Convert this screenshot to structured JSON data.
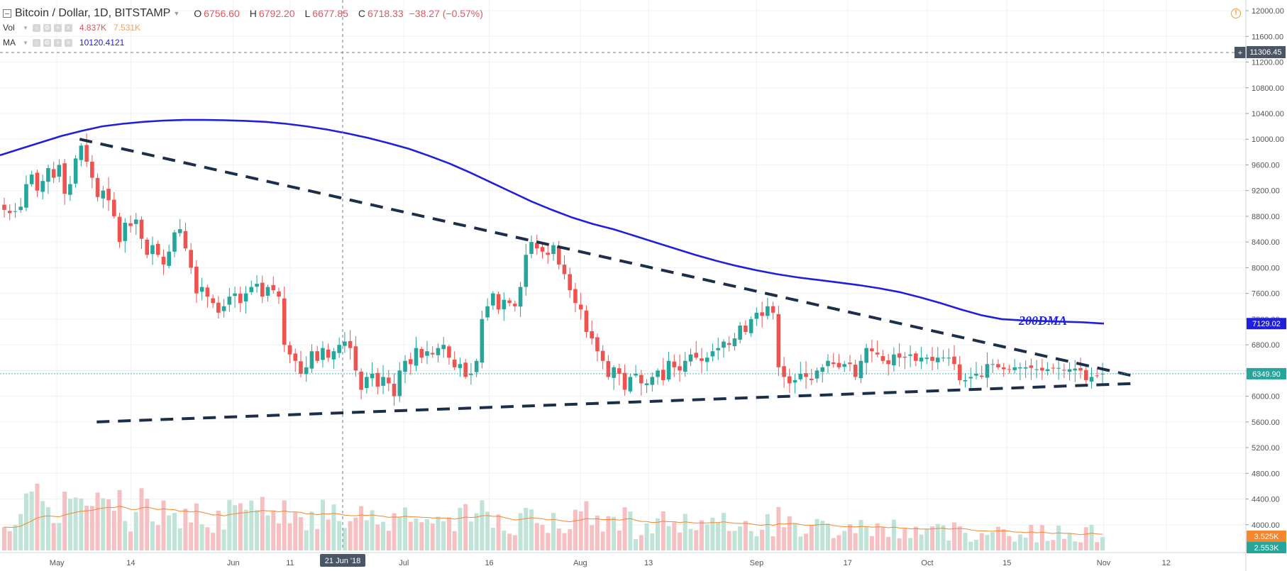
{
  "header": {
    "symbol_title": "Bitcoin / Dollar, 1D, BITSTAMP",
    "ohlc": [
      {
        "label": "O",
        "value": "6756.60"
      },
      {
        "label": "H",
        "value": "6792.20"
      },
      {
        "label": "L",
        "value": "6677.85"
      },
      {
        "label": "C",
        "value": "6718.33"
      }
    ],
    "change": "−38.27 (−0.57%)",
    "alert_icon": "exclamation-circle-icon"
  },
  "indicators": [
    {
      "name": "Vol",
      "values": [
        "4.837K",
        "7.531K"
      ],
      "colors": [
        "#e0585c",
        "#f5a05a"
      ]
    },
    {
      "name": "MA",
      "values": [
        "10120.4121"
      ],
      "colors": [
        "#1f1fdc"
      ]
    }
  ],
  "annotation": {
    "text": "200DMA",
    "color": "#1f1fdc"
  },
  "crosshair": {
    "price_label": "11306.45",
    "date_label": "21 Jun '18"
  },
  "price_tags": {
    "ma": {
      "text": "7129.02",
      "color": "#1f1fdc"
    },
    "last": {
      "text": "6349.90",
      "color": "#26a69a"
    },
    "vol_ma": {
      "text": "3.525K",
      "color": "#f5862e"
    },
    "vol": {
      "text": "2.553K",
      "color": "#26a69a"
    }
  },
  "colors": {
    "up": "#26a69a",
    "down": "#ef5350",
    "ma": "#1f1fdc",
    "trendline": "#1c2f4a",
    "vol_up": "#bfe3d6",
    "vol_down": "#f6c0c3",
    "vol_ma": "#f5862e"
  },
  "chart_data": {
    "type": "candlestick",
    "title": "Bitcoin / Dollar, 1D, BITSTAMP",
    "price_axis": {
      "ticks": [
        "12000.00",
        "11600.00",
        "11200.00",
        "10800.00",
        "10400.00",
        "10000.00",
        "9600.00",
        "9200.00",
        "8800.00",
        "8400.00",
        "8000.00",
        "7600.00",
        "7200.00",
        "6800.00",
        "6400.00",
        "6000.00",
        "5600.00",
        "5200.00",
        "4800.00",
        "4400.00",
        "4000.00"
      ],
      "range": [
        3600,
        12100
      ]
    },
    "time_axis": {
      "ticks": [
        {
          "label": "May",
          "date": "2018-05-01"
        },
        {
          "label": "14",
          "date": "2018-05-14"
        },
        {
          "label": "Jun",
          "date": "2018-06-01"
        },
        {
          "label": "11",
          "date": "2018-06-11"
        },
        {
          "label": "Jul",
          "date": "2018-07-01"
        },
        {
          "label": "16",
          "date": "2018-07-16"
        },
        {
          "label": "Aug",
          "date": "2018-08-01"
        },
        {
          "label": "13",
          "date": "2018-08-13"
        },
        {
          "label": "Sep",
          "date": "2018-09-01"
        },
        {
          "label": "17",
          "date": "2018-09-17"
        },
        {
          "label": "Oct",
          "date": "2018-10-01"
        },
        {
          "label": "15",
          "date": "2018-10-15"
        },
        {
          "label": "Nov",
          "date": "2018-11-01"
        },
        {
          "label": "12",
          "date": "2018-11-12"
        }
      ],
      "range": [
        "2018-04-21",
        "2018-11-26"
      ]
    },
    "closes": [
      8900,
      8850,
      8880,
      8950,
      9300,
      9450,
      9200,
      9350,
      9550,
      9400,
      9600,
      9150,
      9300,
      9700,
      9900,
      9650,
      9400,
      9100,
      9200,
      9050,
      8800,
      8400,
      8700,
      8650,
      8750,
      8450,
      8200,
      8350,
      8200,
      8050,
      8250,
      8550,
      8600,
      8300,
      8000,
      7600,
      7700,
      7550,
      7450,
      7300,
      7400,
      7550,
      7600,
      7450,
      7600,
      7700,
      7750,
      7550,
      7700,
      7650,
      7550,
      6800,
      6650,
      6550,
      6350,
      6450,
      6700,
      6550,
      6750,
      6600,
      6700,
      6800,
      6850,
      6750,
      6400,
      6100,
      6300,
      6350,
      6150,
      6300,
      6200,
      6000,
      6400,
      6550,
      6500,
      6750,
      6600,
      6700,
      6650,
      6750,
      6800,
      6600,
      6450,
      6500,
      6300,
      6350,
      6550,
      7200,
      7400,
      7600,
      7350,
      7500,
      7450,
      7400,
      7700,
      8200,
      8400,
      8300,
      8250,
      8200,
      8350,
      8050,
      7900,
      7650,
      7450,
      7350,
      7000,
      6900,
      6700,
      6550,
      6300,
      6450,
      6350,
      6100,
      6300,
      6350,
      6200,
      6200,
      6300,
      6400,
      6250,
      6550,
      6450,
      6400,
      6550,
      6650,
      6600,
      6550,
      6600,
      6700,
      6750,
      6850,
      6800,
      6900,
      7100,
      7000,
      7200,
      7300,
      7250,
      7400,
      7300,
      6450,
      6300,
      6200,
      6250,
      6350,
      6300,
      6250,
      6400,
      6450,
      6550,
      6500,
      6450,
      6500,
      6500,
      6300,
      6550,
      6750,
      6700,
      6650,
      6550,
      6500,
      6650,
      6600,
      6600,
      6650,
      6550,
      6600,
      6600,
      6550,
      6600,
      6600,
      6600,
      6500,
      6250,
      6250,
      6300,
      6350,
      6300,
      6500,
      6500,
      6450,
      6420,
      6420,
      6450,
      6450,
      6450,
      6440,
      6420,
      6400,
      6420,
      6440,
      6440,
      6400,
      6420,
      6430,
      6400,
      6250,
      6300,
      6320,
      6350
    ],
    "ma_200": [
      9750,
      9850,
      9950,
      10050,
      10130,
      10200,
      10240,
      10270,
      10290,
      10300,
      10300,
      10295,
      10285,
      10270,
      10240,
      10200,
      10150,
      10090,
      10020,
      9940,
      9850,
      9740,
      9620,
      9480,
      9330,
      9180,
      9030,
      8900,
      8780,
      8680,
      8600,
      8500,
      8400,
      8300,
      8200,
      8110,
      8030,
      7960,
      7900,
      7850,
      7810,
      7770,
      7730,
      7680,
      7620,
      7540,
      7450,
      7350,
      7260,
      7200,
      7180,
      7170,
      7160,
      7150,
      7130
    ],
    "trendlines": [
      {
        "name": "descending-resistance",
        "from": [
          "2018-05-05",
          10000
        ],
        "to": [
          "2018-11-07",
          6300
        ]
      },
      {
        "name": "ascending-support",
        "from": [
          "2018-05-08",
          5600
        ],
        "to": [
          "2018-11-07",
          6200
        ]
      }
    ],
    "volume_axis_tags": [
      "3.525K",
      "2.553K"
    ]
  }
}
